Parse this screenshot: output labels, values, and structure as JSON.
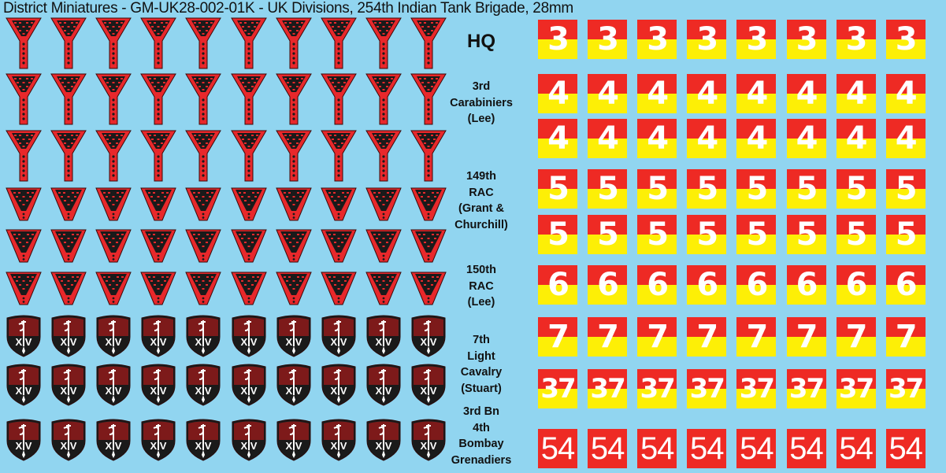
{
  "title": "District Miniatures - GM-UK28-002-01K - UK Divisions, 254th Indian Tank Brigade, 28mm",
  "insignia": {
    "columns": 10,
    "rows": [
      {
        "type": "funnel-long",
        "count": 10
      },
      {
        "type": "funnel-long",
        "count": 10
      },
      {
        "type": "funnel-long",
        "count": 10
      },
      {
        "type": "triangle",
        "count": 10
      },
      {
        "type": "triangle",
        "count": 10
      },
      {
        "type": "triangle",
        "count": 10
      },
      {
        "type": "shield",
        "count": 10,
        "text": "XIV"
      },
      {
        "type": "shield",
        "count": 10,
        "text": "XIV"
      },
      {
        "type": "shield",
        "count": 10,
        "text": "XIV"
      }
    ]
  },
  "units": [
    {
      "label": "HQ"
    },
    {
      "label": "3rd\nCarabiniers\n(Lee)"
    },
    {
      "label": "149th\nRAC\n(Grant &\nChurchill)"
    },
    {
      "label": "150th\nRAC\n(Lee)"
    },
    {
      "label": "7th\nLight\nCavalry\n(Stuart)"
    },
    {
      "label": "3rd Bn\n4th\nBombay\nGrenadiers"
    }
  ],
  "tag_rows": [
    {
      "number": "3",
      "style": "red-yellow",
      "count": 8
    },
    {
      "number": "4",
      "style": "red-yellow",
      "count": 8
    },
    {
      "number": "4",
      "style": "red-yellow",
      "count": 8
    },
    {
      "number": "5",
      "style": "red-yellow",
      "count": 8
    },
    {
      "number": "5",
      "style": "red-yellow",
      "count": 8
    },
    {
      "number": "6",
      "style": "red-yellow",
      "count": 8
    },
    {
      "number": "7",
      "style": "red-yellow",
      "count": 8
    },
    {
      "number": "37",
      "style": "red-yellow",
      "count": 8
    },
    {
      "number": "54",
      "style": "red",
      "count": 8
    }
  ],
  "colors": {
    "background": "#91d5f0",
    "tag_red": "#ee2a24",
    "tag_yellow": "#fdef06",
    "insignia_red": "#e8282b",
    "insignia_black": "#1a1a1a",
    "shield_maroon": "#7d1a1a"
  }
}
